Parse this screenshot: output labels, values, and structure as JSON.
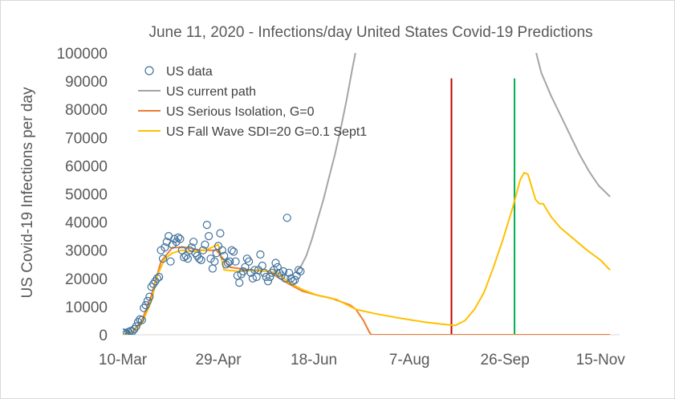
{
  "chart_data": {
    "type": "line",
    "title": "June 11, 2020 - Infections/day United States Covid-19 Predictions",
    "ylabel": "US Covid-19 Infections per day",
    "xlabel": "",
    "ylim": [
      0,
      100000
    ],
    "yticks": [
      0,
      10000,
      20000,
      30000,
      40000,
      50000,
      60000,
      70000,
      80000,
      90000,
      100000
    ],
    "xrange": [
      "2020-03-10",
      "2020-11-25"
    ],
    "xticks": [
      {
        "date": "2020-03-10",
        "label": "10-Mar"
      },
      {
        "date": "2020-04-29",
        "label": "29-Apr"
      },
      {
        "date": "2020-06-18",
        "label": "18-Jun"
      },
      {
        "date": "2020-08-07",
        "label": "7-Aug"
      },
      {
        "date": "2020-09-26",
        "label": "26-Sep"
      },
      {
        "date": "2020-11-15",
        "label": "15-Nov"
      }
    ],
    "grid": false,
    "legend_position": "top-left",
    "vertical_lines": [
      {
        "date": "2020-08-29",
        "color": "#c00000"
      },
      {
        "date": "2020-10-01",
        "color": "#00b050"
      }
    ],
    "series": [
      {
        "name": "US data",
        "kind": "scatter",
        "color": "#41719c",
        "points": [
          [
            "2020-03-10",
            800
          ],
          [
            "2020-03-11",
            700
          ],
          [
            "2020-03-12",
            500
          ],
          [
            "2020-03-13",
            1000
          ],
          [
            "2020-03-14",
            1300
          ],
          [
            "2020-03-15",
            1200
          ],
          [
            "2020-03-16",
            2000
          ],
          [
            "2020-03-17",
            3000
          ],
          [
            "2020-03-18",
            4500
          ],
          [
            "2020-03-19",
            5500
          ],
          [
            "2020-03-20",
            5200
          ],
          [
            "2020-03-21",
            9500
          ],
          [
            "2020-03-22",
            10500
          ],
          [
            "2020-03-23",
            12000
          ],
          [
            "2020-03-24",
            13500
          ],
          [
            "2020-03-25",
            17000
          ],
          [
            "2020-03-26",
            18000
          ],
          [
            "2020-03-27",
            19000
          ],
          [
            "2020-03-28",
            20000
          ],
          [
            "2020-03-29",
            20500
          ],
          [
            "2020-03-30",
            30000
          ],
          [
            "2020-03-31",
            27000
          ],
          [
            "2020-04-01",
            31000
          ],
          [
            "2020-04-02",
            33000
          ],
          [
            "2020-04-03",
            35000
          ],
          [
            "2020-04-04",
            26000
          ],
          [
            "2020-04-05",
            32000
          ],
          [
            "2020-04-06",
            34000
          ],
          [
            "2020-04-07",
            33000
          ],
          [
            "2020-04-08",
            34500
          ],
          [
            "2020-04-09",
            34000
          ],
          [
            "2020-04-10",
            30000
          ],
          [
            "2020-04-11",
            27500
          ],
          [
            "2020-04-12",
            28000
          ],
          [
            "2020-04-13",
            27000
          ],
          [
            "2020-04-14",
            30000
          ],
          [
            "2020-04-15",
            31000
          ],
          [
            "2020-04-16",
            33000
          ],
          [
            "2020-04-17",
            29000
          ],
          [
            "2020-04-18",
            28000
          ],
          [
            "2020-04-19",
            27000
          ],
          [
            "2020-04-20",
            26500
          ],
          [
            "2020-04-21",
            30000
          ],
          [
            "2020-04-22",
            32000
          ],
          [
            "2020-04-23",
            39000
          ],
          [
            "2020-04-24",
            35000
          ],
          [
            "2020-04-25",
            27000
          ],
          [
            "2020-04-26",
            23500
          ],
          [
            "2020-04-27",
            26000
          ],
          [
            "2020-04-28",
            29000
          ],
          [
            "2020-04-29",
            31500
          ],
          [
            "2020-04-30",
            36000
          ],
          [
            "2020-05-01",
            30000
          ],
          [
            "2020-05-02",
            28000
          ],
          [
            "2020-05-03",
            25000
          ],
          [
            "2020-05-04",
            25500
          ],
          [
            "2020-05-05",
            26000
          ],
          [
            "2020-05-06",
            30000
          ],
          [
            "2020-05-07",
            29500
          ],
          [
            "2020-05-08",
            26000
          ],
          [
            "2020-05-09",
            21000
          ],
          [
            "2020-05-10",
            18500
          ],
          [
            "2020-05-11",
            21500
          ],
          [
            "2020-05-12",
            22500
          ],
          [
            "2020-05-13",
            24000
          ],
          [
            "2020-05-14",
            27000
          ],
          [
            "2020-05-15",
            26000
          ],
          [
            "2020-05-16",
            22000
          ],
          [
            "2020-05-17",
            20000
          ],
          [
            "2020-05-18",
            23000
          ],
          [
            "2020-05-19",
            20500
          ],
          [
            "2020-05-20",
            23000
          ],
          [
            "2020-05-21",
            28500
          ],
          [
            "2020-05-22",
            24500
          ],
          [
            "2020-05-23",
            22000
          ],
          [
            "2020-05-24",
            20500
          ],
          [
            "2020-05-25",
            19000
          ],
          [
            "2020-05-26",
            20500
          ],
          [
            "2020-05-27",
            22000
          ],
          [
            "2020-05-28",
            23000
          ],
          [
            "2020-05-29",
            25500
          ],
          [
            "2020-05-30",
            24000
          ],
          [
            "2020-05-31",
            22000
          ],
          [
            "2020-06-01",
            21000
          ],
          [
            "2020-06-02",
            22500
          ],
          [
            "2020-06-03",
            20000
          ],
          [
            "2020-06-04",
            41500
          ],
          [
            "2020-06-05",
            22000
          ],
          [
            "2020-06-06",
            20000
          ],
          [
            "2020-06-07",
            19000
          ],
          [
            "2020-06-08",
            19500
          ],
          [
            "2020-06-09",
            21000
          ],
          [
            "2020-06-10",
            23000
          ],
          [
            "2020-06-11",
            22500
          ]
        ]
      },
      {
        "name": "US current path",
        "kind": "line",
        "color": "#a5a5a5",
        "points": [
          [
            "2020-06-09",
            22500
          ],
          [
            "2020-06-11",
            24000
          ],
          [
            "2020-06-14",
            28000
          ],
          [
            "2020-06-17",
            34000
          ],
          [
            "2020-06-20",
            41000
          ],
          [
            "2020-06-23",
            48000
          ],
          [
            "2020-06-26",
            56000
          ],
          [
            "2020-06-29",
            64000
          ],
          [
            "2020-07-02",
            73000
          ],
          [
            "2020-07-05",
            83000
          ],
          [
            "2020-07-08",
            94000
          ],
          [
            "2020-07-10",
            101000
          ]
        ],
        "points_late": [
          [
            "2020-10-12",
            101000
          ],
          [
            "2020-10-15",
            93000
          ],
          [
            "2020-10-20",
            85000
          ],
          [
            "2020-10-25",
            78000
          ],
          [
            "2020-10-30",
            71000
          ],
          [
            "2020-11-04",
            64000
          ],
          [
            "2020-11-09",
            58000
          ],
          [
            "2020-11-14",
            53000
          ],
          [
            "2020-11-20",
            49000
          ]
        ]
      },
      {
        "name": "US Serious Isolation, G=0",
        "kind": "line",
        "color": "#ed7d31",
        "points": [
          [
            "2020-03-10",
            0
          ],
          [
            "2020-03-15",
            1000
          ],
          [
            "2020-03-20",
            5000
          ],
          [
            "2020-03-25",
            14000
          ],
          [
            "2020-03-30",
            26000
          ],
          [
            "2020-04-05",
            31000
          ],
          [
            "2020-04-12",
            31000
          ],
          [
            "2020-04-20",
            30000
          ],
          [
            "2020-04-28",
            30000
          ],
          [
            "2020-05-05",
            24000
          ],
          [
            "2020-05-15",
            23000
          ],
          [
            "2020-05-25",
            22500
          ],
          [
            "2020-06-05",
            18000
          ],
          [
            "2020-06-12",
            15500
          ],
          [
            "2020-06-20",
            14000
          ],
          [
            "2020-06-27",
            13000
          ],
          [
            "2020-07-03",
            11500
          ],
          [
            "2020-07-07",
            10500
          ],
          [
            "2020-07-10",
            9000
          ],
          [
            "2020-07-14",
            5000
          ],
          [
            "2020-07-17",
            1000
          ],
          [
            "2020-07-18",
            0
          ],
          [
            "2020-11-20",
            0
          ]
        ]
      },
      {
        "name": "US Fall Wave SDI=20 G=0.1 Sept1",
        "kind": "line",
        "color": "#ffc000",
        "points": [
          [
            "2020-03-10",
            0
          ],
          [
            "2020-03-15",
            1000
          ],
          [
            "2020-03-20",
            4000
          ],
          [
            "2020-03-25",
            12000
          ],
          [
            "2020-03-28",
            21000
          ],
          [
            "2020-04-01",
            27000
          ],
          [
            "2020-04-05",
            29000
          ],
          [
            "2020-04-10",
            30000
          ],
          [
            "2020-04-15",
            29500
          ],
          [
            "2020-04-22",
            30000
          ],
          [
            "2020-04-29",
            32000
          ],
          [
            "2020-05-02",
            23000
          ],
          [
            "2020-05-10",
            22500
          ],
          [
            "2020-05-20",
            23000
          ],
          [
            "2020-05-30",
            22000
          ],
          [
            "2020-06-05",
            18500
          ],
          [
            "2020-06-12",
            16000
          ],
          [
            "2020-06-20",
            14000
          ],
          [
            "2020-06-30",
            12500
          ],
          [
            "2020-07-10",
            9000
          ],
          [
            "2020-07-20",
            7500
          ],
          [
            "2020-08-01",
            6000
          ],
          [
            "2020-08-15",
            4500
          ],
          [
            "2020-08-25",
            3700
          ],
          [
            "2020-08-31",
            3300
          ],
          [
            "2020-09-05",
            5000
          ],
          [
            "2020-09-10",
            9000
          ],
          [
            "2020-09-15",
            15000
          ],
          [
            "2020-09-20",
            24000
          ],
          [
            "2020-09-25",
            34000
          ],
          [
            "2020-09-30",
            45000
          ],
          [
            "2020-10-04",
            55000
          ],
          [
            "2020-10-06",
            57500
          ],
          [
            "2020-10-08",
            57000
          ],
          [
            "2020-10-12",
            48000
          ],
          [
            "2020-10-14",
            46500
          ],
          [
            "2020-10-16",
            46500
          ],
          [
            "2020-10-20",
            42000
          ],
          [
            "2020-10-25",
            38000
          ],
          [
            "2020-11-01",
            34000
          ],
          [
            "2020-11-08",
            30000
          ],
          [
            "2020-11-15",
            26500
          ],
          [
            "2020-11-20",
            23000
          ]
        ]
      }
    ]
  }
}
